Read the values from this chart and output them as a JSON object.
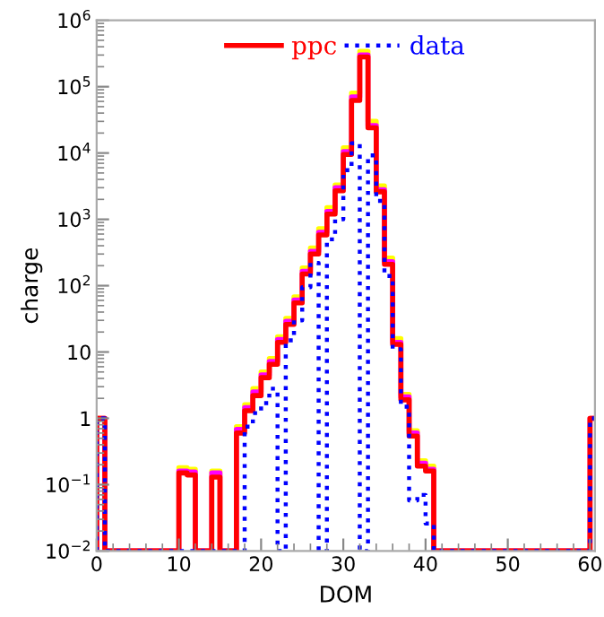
{
  "chart_data": {
    "type": "histogram",
    "xlabel": "DOM",
    "ylabel": "charge",
    "bins": [
      0,
      1,
      2,
      3,
      4,
      5,
      6,
      7,
      8,
      9,
      10,
      11,
      12,
      13,
      14,
      15,
      16,
      17,
      18,
      19,
      20,
      21,
      22,
      23,
      24,
      25,
      26,
      27,
      28,
      29,
      30,
      31,
      32,
      33,
      34,
      35,
      36,
      37,
      38,
      39,
      40,
      41,
      42,
      43,
      44,
      45,
      46,
      47,
      48,
      49,
      50,
      51,
      52,
      53,
      54,
      55,
      56,
      57,
      58,
      59,
      60,
      61
    ],
    "series": [
      {
        "color": "#ffff00",
        "line_style": "solid",
        "values": [
          1,
          null,
          null,
          null,
          null,
          null,
          null,
          null,
          null,
          null,
          0.18,
          0.17,
          null,
          null,
          0.16,
          null,
          null,
          0.75,
          1.6,
          2.8,
          5,
          8,
          17,
          32,
          68,
          185,
          370,
          720,
          1500,
          3300,
          12000,
          80000,
          340000,
          30000,
          3200,
          260,
          16,
          2.3,
          0.65,
          0.23,
          0.19,
          null,
          null,
          null,
          null,
          null,
          null,
          null,
          null,
          null,
          null,
          null,
          null,
          null,
          null,
          null,
          null,
          null,
          null,
          null,
          1
        ]
      },
      {
        "color": "#ff00ff",
        "line_style": "solid",
        "values": [
          1,
          null,
          null,
          null,
          null,
          null,
          null,
          null,
          null,
          null,
          0.16,
          0.155,
          null,
          null,
          0.15,
          null,
          null,
          0.68,
          1.45,
          2.5,
          4.5,
          7.2,
          15.5,
          29,
          61,
          165,
          330,
          640,
          1320,
          3000,
          10500,
          70000,
          300000,
          26000,
          2800,
          230,
          14,
          2.1,
          0.6,
          0.21,
          0.17,
          null,
          null,
          null,
          null,
          null,
          null,
          null,
          null,
          null,
          null,
          null,
          null,
          null,
          null,
          null,
          null,
          null,
          null,
          null,
          1
        ]
      },
      {
        "name": "ppc",
        "color": "#ff0000",
        "line_style": "solid",
        "values": [
          1,
          null,
          null,
          null,
          null,
          null,
          null,
          null,
          null,
          null,
          0.15,
          0.14,
          null,
          null,
          0.13,
          null,
          null,
          0.6,
          1.3,
          2.2,
          4.1,
          6.5,
          14,
          26,
          55,
          150,
          300,
          580,
          1200,
          2700,
          9500,
          62000,
          280000,
          24000,
          2600,
          210,
          13,
          1.9,
          0.54,
          0.19,
          0.16,
          null,
          null,
          null,
          null,
          null,
          null,
          null,
          null,
          null,
          null,
          null,
          null,
          null,
          null,
          null,
          null,
          null,
          null,
          null,
          1
        ]
      },
      {
        "name": "data",
        "color": "#0000ff",
        "line_style": "dotted",
        "values": [
          1,
          null,
          null,
          null,
          null,
          null,
          null,
          null,
          null,
          null,
          null,
          null,
          null,
          null,
          null,
          null,
          null,
          null,
          0.75,
          1.2,
          1.7,
          2.8,
          null,
          15,
          30,
          95,
          220,
          null,
          500,
          1000,
          5500,
          14000,
          null,
          9200,
          1900,
          140,
          11,
          1.5,
          0.058,
          0.07,
          0.026,
          null,
          null,
          null,
          null,
          null,
          null,
          null,
          null,
          null,
          null,
          null,
          null,
          null,
          null,
          null,
          null,
          null,
          null,
          null,
          1
        ]
      }
    ],
    "log": "y",
    "xlim": [
      0,
      60.6
    ],
    "xticks": [
      0,
      10,
      20,
      30,
      40,
      50,
      60
    ],
    "ylim": [
      0.01,
      1000000
    ],
    "yticks": [
      {
        "value": 0.01,
        "label": "10$^{−2}$"
      },
      {
        "value": 0.1,
        "label": "10$^{−1}$"
      },
      1,
      10,
      {
        "value": 100,
        "label": "10$^{2}$"
      },
      {
        "value": 1000,
        "label": "10$^{3}$"
      },
      {
        "value": 10000,
        "label": "10$^{4}$"
      },
      {
        "value": 100000,
        "label": "10$^{5}$"
      },
      {
        "value": 1000000,
        "label": "10$^{6}$"
      }
    ],
    "grid": false,
    "legend": "top"
  }
}
